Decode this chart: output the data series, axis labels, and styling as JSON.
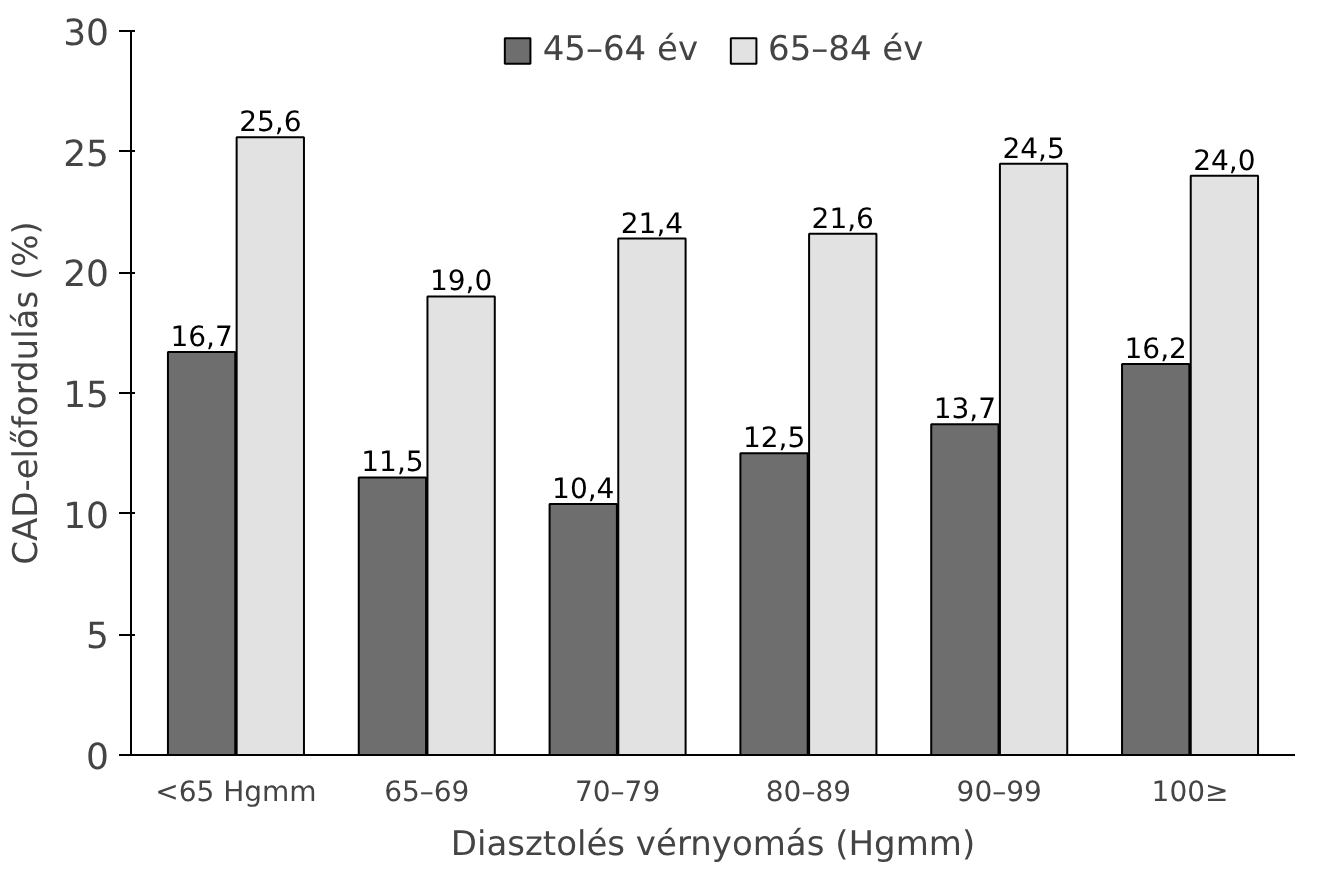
{
  "chart_data": {
    "type": "bar",
    "xlabel": "Diasztolés vérnyomás (Hgmm)",
    "ylabel": "CAD-előfordulás (%)",
    "categories": [
      "<65 Hgmm",
      "65–69",
      "70–79",
      "80–89",
      "90–99",
      "100≥"
    ],
    "series": [
      {
        "name": "45–64 év",
        "color": "#6e6e6e",
        "values": [
          16.7,
          11.5,
          10.4,
          12.5,
          13.7,
          16.2
        ],
        "value_labels": [
          "16,7",
          "11,5",
          "10,4",
          "12,5",
          "13,7",
          "16,2"
        ]
      },
      {
        "name": "65–84 év",
        "color": "#e2e2e2",
        "values": [
          25.6,
          19.0,
          21.4,
          21.6,
          24.5,
          24.0
        ],
        "value_labels": [
          "25,6",
          "19,0",
          "21,4",
          "21,6",
          "24,5",
          "24,0"
        ]
      }
    ],
    "ylim": [
      0,
      30
    ],
    "yticks": [
      0,
      5,
      10,
      15,
      20,
      25,
      30
    ],
    "grid": false,
    "legend": "top"
  }
}
